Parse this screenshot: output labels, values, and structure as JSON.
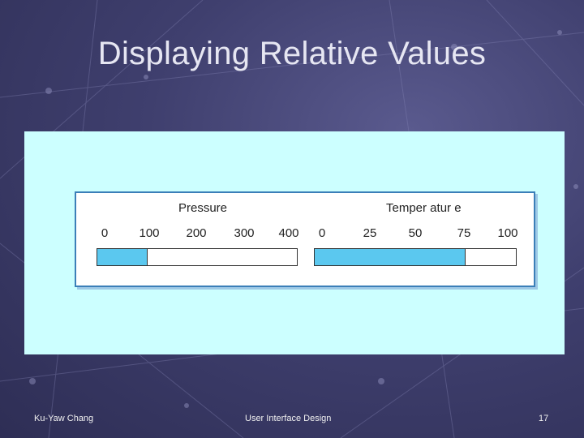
{
  "slide": {
    "title": "Displaying Relative Values",
    "footer_left": "Ku-Yaw Chang",
    "footer_center": "User Interface Design",
    "page_number": "17"
  },
  "gauges": [
    {
      "title": "Pressure",
      "ticks": [
        "0",
        "100",
        "200",
        "300",
        "400"
      ],
      "min": 0,
      "max": 400,
      "value": 100
    },
    {
      "title": "Temper atur e",
      "ticks": [
        "0",
        "25",
        "50",
        "75",
        "100"
      ],
      "min": 0,
      "max": 100,
      "value": 75
    }
  ],
  "colors": {
    "panel_bg": "#ccffff",
    "fill": "#5bc8ef",
    "frame_border": "#3b7fb8",
    "slide_bg": "#3f3f6e"
  }
}
